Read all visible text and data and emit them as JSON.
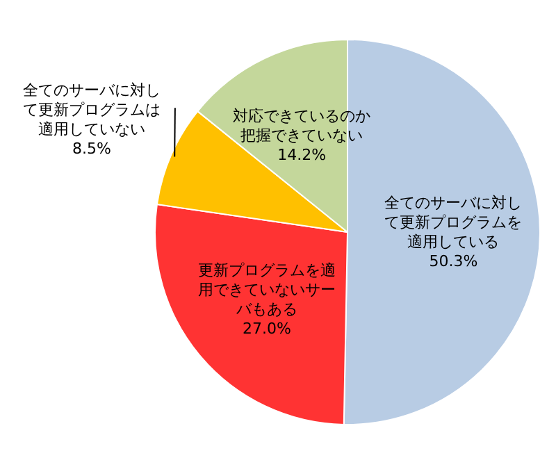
{
  "chart_data": {
    "type": "pie",
    "categories": [
      "全てのサーバに対して更新プログラムを適用している",
      "更新プログラムを適用できていないサーバもある",
      "全てのサーバに対して更新プログラムは適用していない",
      "対応できているのか把握できていない"
    ],
    "values": [
      50.3,
      27.0,
      8.5,
      14.2
    ],
    "value_labels": [
      "50.3%",
      "27.0%",
      "8.5%",
      "14.2%"
    ],
    "colors": [
      "#b8cce4",
      "#ff3333",
      "#ffc000",
      "#c4d79b"
    ],
    "legend": false
  }
}
